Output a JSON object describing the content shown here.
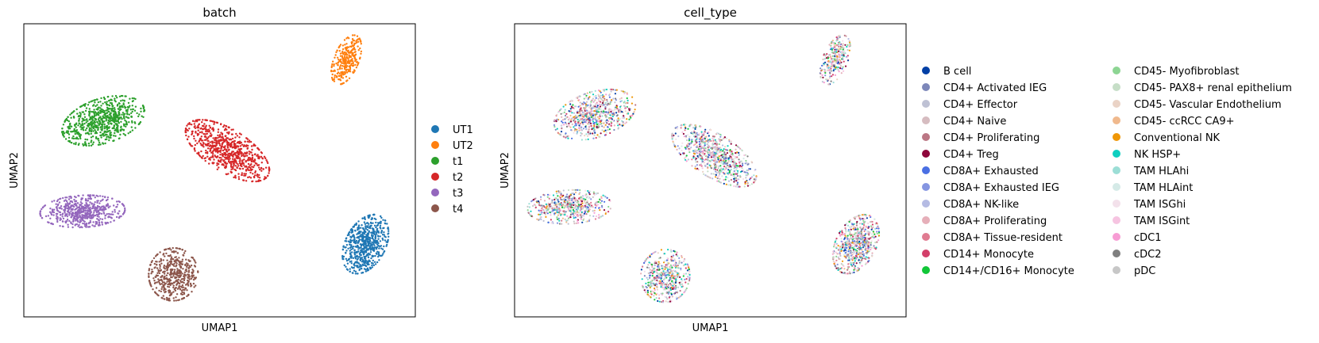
{
  "chart_data": [
    {
      "type": "scatter",
      "title": "batch",
      "xlabel": "UMAP1",
      "ylabel": "UMAP2",
      "xlim": [
        0,
        100
      ],
      "ylim": [
        0,
        100
      ],
      "grid": false,
      "ticks": "none",
      "legend_placement": "right",
      "series": [
        {
          "name": "UT1",
          "color": "#1f77b4",
          "cx": 87.3,
          "cy": 24.8,
          "w": 10.2,
          "h": 21.6,
          "rot": -28,
          "n": 620
        },
        {
          "name": "UT2",
          "color": "#ff7f0e",
          "cx": 82.4,
          "cy": 87.7,
          "w": 6.3,
          "h": 17.8,
          "rot": -22,
          "n": 280
        },
        {
          "name": "t1",
          "color": "#2ca02c",
          "cx": 20.3,
          "cy": 66.9,
          "w": 21.8,
          "h": 15.2,
          "rot": 18,
          "n": 700
        },
        {
          "name": "t2",
          "color": "#d62728",
          "cx": 52.0,
          "cy": 56.7,
          "w": 24.3,
          "h": 14.4,
          "rot": -32,
          "n": 750
        },
        {
          "name": "t3",
          "color": "#9467bd",
          "cx": 15.0,
          "cy": 36.0,
          "w": 21.7,
          "h": 10.9,
          "rot": 3,
          "n": 560
        },
        {
          "name": "t4",
          "color": "#8c564b",
          "cx": 38.2,
          "cy": 14.5,
          "w": 12.6,
          "h": 18.0,
          "rot": -5,
          "n": 480
        }
      ]
    },
    {
      "type": "scatter",
      "title": "cell_type",
      "xlabel": "UMAP1",
      "ylabel": "UMAP2",
      "xlim": [
        0,
        100
      ],
      "ylim": [
        0,
        100
      ],
      "grid": false,
      "ticks": "none",
      "legend_placement": "right",
      "clusters": [
        {
          "cx": 87.2,
          "cy": 24.8,
          "w": 10.2,
          "h": 21.6,
          "rot": -28,
          "n": 620
        },
        {
          "cx": 81.9,
          "cy": 87.7,
          "w": 6.3,
          "h": 17.8,
          "rot": -22,
          "n": 280
        },
        {
          "cx": 20.5,
          "cy": 69.0,
          "w": 21.5,
          "h": 15.5,
          "rot": 18,
          "n": 700
        },
        {
          "cx": 51.0,
          "cy": 55.0,
          "w": 24.5,
          "h": 14.5,
          "rot": -32,
          "n": 750
        },
        {
          "cx": 14.0,
          "cy": 37.5,
          "w": 21.5,
          "h": 11.5,
          "rot": 3,
          "n": 560
        },
        {
          "cx": 38.5,
          "cy": 14.0,
          "w": 12.5,
          "h": 18.0,
          "rot": -5,
          "n": 480
        }
      ],
      "series": [
        {
          "name": "B cell",
          "color": "#023fa5"
        },
        {
          "name": "CD4+ Activated IEG",
          "color": "#7d87b9"
        },
        {
          "name": "CD4+ Effector",
          "color": "#bec1d4"
        },
        {
          "name": "CD4+ Naive",
          "color": "#d6bcc0"
        },
        {
          "name": "CD4+ Proliferating",
          "color": "#bb7784"
        },
        {
          "name": "CD4+ Treg",
          "color": "#8e063b"
        },
        {
          "name": "CD8A+ Exhausted",
          "color": "#4a6fe3"
        },
        {
          "name": "CD8A+ Exhausted IEG",
          "color": "#8595e1"
        },
        {
          "name": "CD8A+ NK-like",
          "color": "#b5bbe3"
        },
        {
          "name": "CD8A+ Proliferating",
          "color": "#e6afb9"
        },
        {
          "name": "CD8A+ Tissue-resident",
          "color": "#e07b91"
        },
        {
          "name": "CD14+ Monocyte",
          "color": "#d33f6a"
        },
        {
          "name": "CD14+/CD16+ Monocyte",
          "color": "#11c638"
        },
        {
          "name": "CD45- Myofibroblast",
          "color": "#8dd593"
        },
        {
          "name": "CD45- PAX8+ renal epithelium",
          "color": "#c6dec7"
        },
        {
          "name": "CD45- Vascular Endothelium",
          "color": "#ead3c6"
        },
        {
          "name": "CD45- ccRCC CA9+",
          "color": "#f0b98d"
        },
        {
          "name": "Conventional NK",
          "color": "#ef9708"
        },
        {
          "name": "NK HSP+",
          "color": "#0fcfc0"
        },
        {
          "name": "TAM HLAhi",
          "color": "#9cded6"
        },
        {
          "name": "TAM HLAint",
          "color": "#d5eae7"
        },
        {
          "name": "TAM ISGhi",
          "color": "#f3e1eb"
        },
        {
          "name": "TAM ISGint",
          "color": "#f6c4e1"
        },
        {
          "name": "cDC1",
          "color": "#f79cd4"
        },
        {
          "name": "cDC2",
          "color": "#7f7f7f"
        },
        {
          "name": "pDC",
          "color": "#c7c7c7"
        }
      ]
    }
  ]
}
